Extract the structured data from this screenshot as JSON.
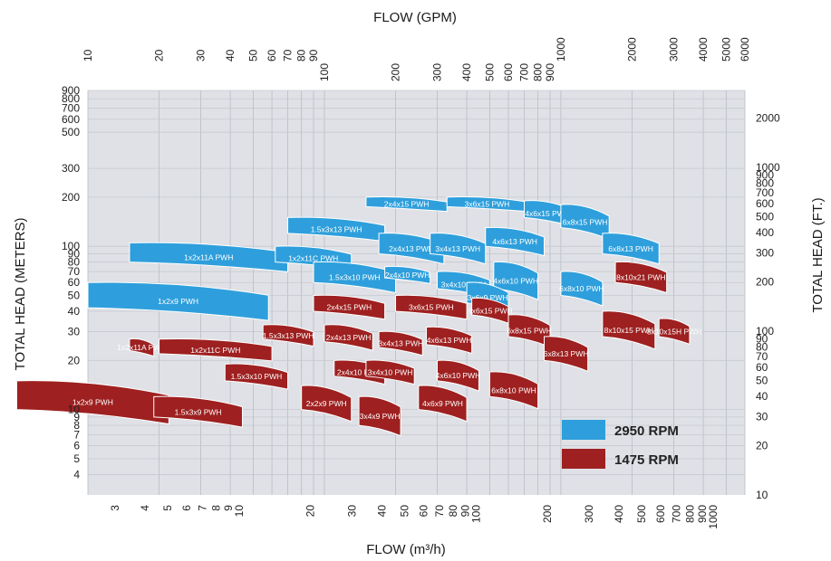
{
  "chart_data": {
    "type": "scatter",
    "title": "",
    "axes": {
      "x_top": {
        "label": "FLOW (GPM)",
        "scale": "log",
        "range": [
          10,
          6000
        ],
        "ticks": [
          "10",
          "20",
          "30",
          "40",
          "50",
          "60",
          "70",
          "80",
          "90",
          "100",
          "200",
          "300",
          "400",
          "500",
          "600",
          "700",
          "800",
          "900",
          "1000",
          "2000",
          "3000",
          "4000",
          "5000",
          "6000"
        ]
      },
      "x_bottom": {
        "label": "FLOW (m³/h)",
        "scale": "log",
        "range": [
          2.3,
          1363
        ],
        "ticks": [
          "3",
          "4",
          "5",
          "6",
          "7",
          "8",
          "9",
          "10",
          "20",
          "30",
          "40",
          "50",
          "60",
          "70",
          "80",
          "90",
          "100",
          "200",
          "300",
          "400",
          "500",
          "600",
          "700",
          "800",
          "900",
          "1000"
        ]
      },
      "y_left": {
        "label": "TOTAL HEAD (METERS)",
        "scale": "log",
        "range": [
          3,
          900
        ],
        "ticks": [
          "4",
          "5",
          "6",
          "7",
          "8",
          "9",
          "10",
          "20",
          "30",
          "40",
          "50",
          "60",
          "70",
          "80",
          "90",
          "100",
          "200",
          "300",
          "500",
          "600",
          "700",
          "800",
          "900"
        ]
      },
      "y_right": {
        "label": "TOTAL HEAD (FT.)",
        "scale": "log",
        "range": [
          10,
          2950
        ],
        "ticks": [
          "10",
          "20",
          "30",
          "40",
          "50",
          "60",
          "70",
          "80",
          "90",
          "100",
          "200",
          "300",
          "400",
          "500",
          "600",
          "700",
          "800",
          "900",
          "1000",
          "2000"
        ]
      }
    },
    "grid": true,
    "legend": {
      "position": "bottom-right",
      "entries": [
        {
          "label": "2950 RPM",
          "color": "#2e9fdc"
        },
        {
          "label": "1475 RPM",
          "color": "#9e2020"
        }
      ]
    },
    "series": [
      {
        "name": "2950 RPM",
        "color": "#2e9fdc",
        "regions": [
          {
            "label": "1x2x9 PWH",
            "gpm": [
              10,
              58
            ],
            "head_m": [
              42,
              60
            ]
          },
          {
            "label": "1x2x11A PWH",
            "gpm": [
              15,
              70
            ],
            "head_m": [
              80,
              105
            ]
          },
          {
            "label": "1x2x11C PWH",
            "gpm": [
              62,
              130
            ],
            "head_m": [
              80,
              100
            ]
          },
          {
            "label": "1.5x3x13 PWH",
            "gpm": [
              70,
              180
            ],
            "head_m": [
              120,
              150
            ]
          },
          {
            "label": "1.5x3x10 PWH",
            "gpm": [
              90,
              200
            ],
            "head_m": [
              60,
              80
            ]
          },
          {
            "label": "2x4x15 PWH",
            "gpm": [
              150,
              330
            ],
            "head_m": [
              175,
              200
            ]
          },
          {
            "label": "2x4x13 PWH",
            "gpm": [
              170,
              320
            ],
            "head_m": [
              90,
              120
            ]
          },
          {
            "label": "2x4x10 PWH",
            "gpm": [
              180,
              280
            ],
            "head_m": [
              64,
              75
            ]
          },
          {
            "label": "3x4x13 PWH",
            "gpm": [
              280,
              480
            ],
            "head_m": [
              90,
              120
            ]
          },
          {
            "label": "3x4x10 PWH",
            "gpm": [
              300,
              500
            ],
            "head_m": [
              55,
              70
            ]
          },
          {
            "label": "3x6x15 PWH",
            "gpm": [
              330,
              720
            ],
            "head_m": [
              175,
              200
            ]
          },
          {
            "label": "4x6x13 PWH",
            "gpm": [
              480,
              850
            ],
            "head_m": [
              100,
              130
            ]
          },
          {
            "label": "4x6x10 PWH",
            "gpm": [
              520,
              800
            ],
            "head_m": [
              55,
              80
            ]
          },
          {
            "label": "3x6x9 PWH",
            "gpm": [
              400,
              600
            ],
            "head_m": [
              45,
              60
            ]
          },
          {
            "label": "4x6x15 PWH",
            "gpm": [
              700,
              1100
            ],
            "head_m": [
              150,
              190
            ]
          },
          {
            "label": "6x8x15 PWH",
            "gpm": [
              1000,
              1600
            ],
            "head_m": [
              130,
              180
            ]
          },
          {
            "label": "6x8x13 PWH",
            "gpm": [
              1500,
              2600
            ],
            "head_m": [
              90,
              120
            ]
          },
          {
            "label": "6x8x10 PWH",
            "gpm": [
              1000,
              1500
            ],
            "head_m": [
              50,
              70
            ]
          }
        ]
      },
      {
        "name": "1475 RPM",
        "color": "#9e2020",
        "regions": [
          {
            "label": "1x2x9 PWH",
            "gpm": [
              5,
              22
            ],
            "head_m": [
              10,
              15
            ]
          },
          {
            "label": "1.5x3x9 PWH",
            "gpm": [
              19,
              45
            ],
            "head_m": [
              9,
              12
            ]
          },
          {
            "label": "1x2x11A PWH",
            "gpm": [
              15,
              19
            ],
            "head_m": [
              23,
              27
            ]
          },
          {
            "label": "1x2x11C PWH",
            "gpm": [
              20,
              60
            ],
            "head_m": [
              22,
              27
            ]
          },
          {
            "label": "1.5x3x10 PWH",
            "gpm": [
              38,
              70
            ],
            "head_m": [
              15,
              19
            ]
          },
          {
            "label": "1.5x3x13 PWH",
            "gpm": [
              55,
              90
            ],
            "head_m": [
              27,
              33
            ]
          },
          {
            "label": "2x4x15 PWH",
            "gpm": [
              90,
              180
            ],
            "head_m": [
              40,
              50
            ]
          },
          {
            "label": "2x4x13 PWH",
            "gpm": [
              100,
              160
            ],
            "head_m": [
              26,
              33
            ]
          },
          {
            "label": "2x4x10 PWH",
            "gpm": [
              110,
              180
            ],
            "head_m": [
              16,
              20
            ]
          },
          {
            "label": "2x2x9 PWH",
            "gpm": [
              80,
              130
            ],
            "head_m": [
              10,
              14
            ]
          },
          {
            "label": "3x4x9 PWH",
            "gpm": [
              140,
              210
            ],
            "head_m": [
              8,
              12
            ]
          },
          {
            "label": "3x4x13 PWH",
            "gpm": [
              170,
              260
            ],
            "head_m": [
              24,
              30
            ]
          },
          {
            "label": "3x4x10 PWH",
            "gpm": [
              150,
              240
            ],
            "head_m": [
              16,
              20
            ]
          },
          {
            "label": "3x6x15 PWH",
            "gpm": [
              200,
              400
            ],
            "head_m": [
              40,
              50
            ]
          },
          {
            "label": "4x6x13 PWH",
            "gpm": [
              270,
              420
            ],
            "head_m": [
              25,
              32
            ]
          },
          {
            "label": "4x6x10 PWH",
            "gpm": [
              300,
              450
            ],
            "head_m": [
              15,
              20
            ]
          },
          {
            "label": "4x6x9 PWH",
            "gpm": [
              250,
              400
            ],
            "head_m": [
              10,
              14
            ]
          },
          {
            "label": "4x6x15 PWH",
            "gpm": [
              420,
              600
            ],
            "head_m": [
              38,
              48
            ]
          },
          {
            "label": "6x8x15 PWH",
            "gpm": [
              600,
              900
            ],
            "head_m": [
              28,
              38
            ]
          },
          {
            "label": "6x8x13 PWH",
            "gpm": [
              850,
              1300
            ],
            "head_m": [
              20,
              28
            ]
          },
          {
            "label": "6x8x10 PWH",
            "gpm": [
              500,
              800
            ],
            "head_m": [
              12,
              17
            ]
          },
          {
            "label": "8x10x15 PWH",
            "gpm": [
              1500,
              2500
            ],
            "head_m": [
              28,
              40
            ]
          },
          {
            "label": "8x10x21 PWH",
            "gpm": [
              1700,
              2800
            ],
            "head_m": [
              60,
              80
            ]
          },
          {
            "label": "8x10x15H PWH",
            "gpm": [
              2600,
              3500
            ],
            "head_m": [
              28,
              36
            ]
          }
        ]
      }
    ]
  }
}
